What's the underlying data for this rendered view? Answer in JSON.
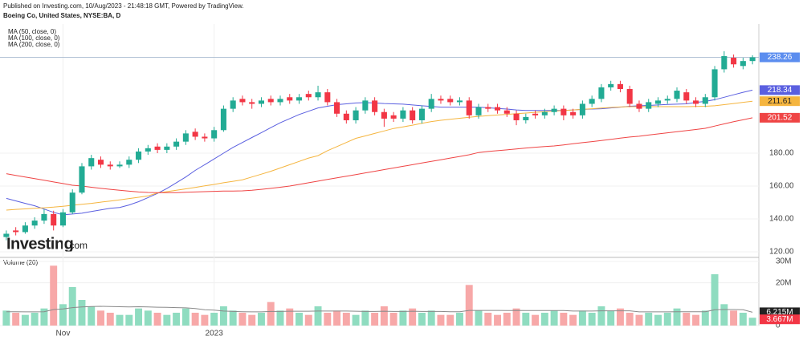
{
  "header": {
    "published": "Published on Investing.com, 10/Aug/2023 - 21:48:18 GMT, Powered by TradingView.",
    "symbol": "Boeing Co, United States, NYSE:BA, D"
  },
  "logo": {
    "name": "Investing",
    "suffix": ".com"
  },
  "chart_data": {
    "type": "candlestick",
    "categories": [
      null,
      null,
      null,
      null,
      null,
      null,
      "Nov",
      null,
      null,
      null,
      null,
      null,
      null,
      null,
      null,
      null,
      null,
      null,
      null,
      null,
      null,
      null,
      "2023",
      null,
      null,
      null,
      null,
      null,
      null,
      null,
      null,
      null,
      null,
      null,
      null,
      null,
      null,
      null,
      null,
      null,
      null,
      null,
      null,
      null,
      null,
      null,
      null,
      null,
      null,
      null,
      null,
      null,
      null,
      null,
      null,
      null,
      null,
      null,
      null,
      null,
      null,
      null,
      null,
      null,
      null,
      null,
      null,
      null,
      null,
      null,
      null,
      null,
      null,
      null,
      null,
      null,
      null,
      null,
      null,
      null
    ],
    "open": [
      129,
      133,
      132,
      136,
      139,
      143,
      136,
      144,
      156,
      172,
      176,
      173,
      172,
      173,
      176,
      181,
      184,
      182,
      184,
      187,
      193,
      190,
      189,
      194,
      207,
      213,
      211,
      210,
      213,
      211,
      214,
      212,
      216,
      214,
      217,
      211,
      204,
      200,
      206,
      212,
      205,
      203,
      201,
      206,
      200,
      207,
      213,
      213,
      211,
      212,
      203,
      208,
      208,
      206,
      204,
      200,
      204,
      203,
      205,
      207,
      205,
      203,
      210,
      213,
      220,
      222,
      219,
      210,
      207,
      210,
      212,
      213,
      217,
      212,
      210,
      214,
      231,
      238,
      233,
      236
    ],
    "high": [
      133,
      135,
      138,
      141,
      146,
      145,
      146,
      158,
      174,
      179,
      178,
      175,
      175,
      178,
      183,
      185,
      186,
      186,
      189,
      194,
      195,
      192,
      196,
      209,
      214,
      215,
      213,
      214,
      215,
      215,
      216,
      216,
      218,
      221,
      219,
      213,
      206,
      208,
      214,
      214,
      207,
      205,
      208,
      208,
      209,
      216,
      215,
      215,
      214,
      214,
      210,
      210,
      210,
      208,
      206,
      204,
      206,
      207,
      209,
      209,
      207,
      212,
      215,
      222,
      224,
      224,
      221,
      212,
      213,
      214,
      215,
      220,
      219,
      214,
      216,
      233,
      242,
      240,
      238,
      239.5
    ],
    "low": [
      127,
      130,
      131,
      134,
      137,
      133,
      135,
      143,
      155,
      170,
      171,
      170,
      171,
      171,
      174,
      179,
      180,
      180,
      182,
      185,
      188,
      187,
      187,
      193,
      205,
      209,
      207,
      208,
      209,
      209,
      210,
      210,
      212,
      212,
      209,
      202,
      198,
      198,
      204,
      203,
      196,
      199,
      199,
      198,
      198,
      205,
      210,
      209,
      209,
      201,
      201,
      205,
      204,
      202,
      197,
      198,
      201,
      201,
      203,
      200,
      201,
      201,
      208,
      211,
      218,
      217,
      208,
      205,
      205,
      208,
      210,
      211,
      210,
      208,
      208,
      212,
      229,
      232,
      231,
      234
    ],
    "close": [
      131,
      132,
      136,
      139,
      143,
      136,
      144,
      156,
      172,
      177,
      173,
      172,
      173,
      176,
      181,
      183,
      182,
      184,
      187,
      192,
      190,
      189,
      194,
      207,
      212,
      211,
      210,
      212,
      211,
      213,
      212,
      214,
      214,
      217,
      211,
      204,
      200,
      206,
      212,
      205,
      201,
      201,
      206,
      200,
      207,
      213,
      212,
      211,
      212,
      203,
      208,
      207,
      206,
      204,
      200,
      202,
      203,
      205,
      207,
      203,
      203,
      210,
      213,
      220,
      222,
      219,
      210,
      207,
      211,
      212,
      213,
      218,
      212,
      210,
      214,
      231,
      239,
      234,
      236,
      238.26
    ],
    "up_color": "#22ab94",
    "down_color": "#f23645",
    "ylim": [
      117.1,
      258.5
    ],
    "yticks": [
      {
        "value": 120,
        "label": "120.00"
      },
      {
        "value": 140,
        "label": "140.00"
      },
      {
        "value": 160,
        "label": "160.00"
      },
      {
        "value": 180,
        "label": "180.00"
      }
    ],
    "last_price_color": "#5b8def",
    "series": [
      {
        "name": "MA (50, close, 0)",
        "color": "#5a5fe0",
        "values": [
          152.5,
          151,
          149.5,
          148,
          146,
          144,
          142.5,
          143,
          143.5,
          144.5,
          145.5,
          146.5,
          147,
          148.5,
          150.5,
          153,
          155.5,
          158.5,
          162,
          165.5,
          169.5,
          173,
          176.5,
          180,
          183.5,
          186.5,
          189.5,
          192.5,
          195.5,
          198.5,
          201,
          203.5,
          205.5,
          207.5,
          208.5,
          209.5,
          210,
          210.5,
          210.7,
          210.5,
          210.2,
          210,
          209.8,
          209.3,
          208.8,
          208.4,
          208,
          208,
          208,
          208,
          208,
          207.6,
          207.2,
          206.8,
          206.3,
          206,
          206,
          206,
          206,
          206,
          206.3,
          206.6,
          206.8,
          207,
          207.5,
          208,
          208.5,
          208.8,
          209,
          209.3,
          209.6,
          209.8,
          210,
          210.8,
          211.5,
          212.5,
          214,
          215.5,
          217,
          218.34
        ]
      },
      {
        "name": "MA (100, close, 0)",
        "color": "#f5b53f",
        "values": [
          145.4,
          145.8,
          146.1,
          146.5,
          146.8,
          147.2,
          147.7,
          148.3,
          148.9,
          149.5,
          150.2,
          150.9,
          151.6,
          152.4,
          153.2,
          154,
          155.8,
          156.6,
          157.4,
          158.3,
          159.2,
          160.1,
          161,
          162,
          162.9,
          163.8,
          165.5,
          167.2,
          169,
          171,
          173,
          175,
          177,
          178.5,
          181.5,
          184,
          186.5,
          189,
          190.5,
          192,
          193.5,
          195,
          196,
          197,
          198.2,
          199.2,
          200,
          200.6,
          201.2,
          201.8,
          202.4,
          202.8,
          203.2,
          203.6,
          204,
          204.4,
          204.8,
          205.2,
          205.6,
          205.9,
          206.3,
          206.6,
          207,
          207.4,
          207.8,
          208.1,
          208.3,
          208.3,
          208.3,
          208.3,
          208.3,
          208.3,
          208.3,
          208.4,
          208.5,
          208.8,
          209.5,
          210.2,
          210.9,
          211.61
        ]
      },
      {
        "name": "MA (200, close, 0)",
        "color": "#ef4444",
        "values": [
          167.5,
          166.5,
          165.5,
          164.5,
          163.5,
          162.5,
          161.5,
          160.5,
          160,
          159.3,
          158.6,
          158,
          157.4,
          156.9,
          156.4,
          156.1,
          156,
          156,
          156,
          156.2,
          156.4,
          156.6,
          156.8,
          157,
          157,
          157.1,
          157.4,
          158,
          158.6,
          159.3,
          160,
          161,
          162,
          163,
          164,
          165,
          166,
          167,
          168,
          169,
          170,
          171,
          172,
          173,
          174,
          175,
          176,
          177,
          178,
          179,
          180.4,
          181,
          181.5,
          182,
          182.6,
          183.1,
          183.6,
          184,
          184.4,
          185,
          185.7,
          186.4,
          187,
          187.7,
          188.4,
          189.1,
          189.8,
          190.3,
          191,
          191.7,
          192.4,
          193,
          193.7,
          194.4,
          195.1,
          196.5,
          197.8,
          199.1,
          200.3,
          201.52
        ]
      }
    ],
    "volume": {
      "title": "Volume (20)",
      "values": [
        7,
        6,
        5,
        6,
        8,
        28,
        10,
        18,
        12,
        9,
        7,
        6,
        5,
        5,
        8,
        7,
        6,
        5,
        6,
        8,
        6,
        5,
        6,
        9,
        7,
        6,
        5,
        6,
        11,
        7,
        8,
        6,
        5,
        9,
        6,
        7,
        6,
        5,
        7,
        6,
        9,
        6,
        7,
        8,
        6,
        7,
        5,
        5,
        6,
        19,
        7,
        6,
        5,
        6,
        8,
        6,
        5,
        6,
        7,
        6,
        5,
        7,
        6,
        9,
        7,
        8,
        6,
        5,
        6,
        5,
        6,
        8,
        6,
        5,
        7,
        24,
        10,
        7,
        6,
        3.667
      ],
      "last_label": "3.667M",
      "up_color": "#8fdcc0",
      "down_color": "#f7a8a8",
      "ylim": [
        0,
        31.5
      ],
      "yticks": [
        {
          "value": 30,
          "label": "30M"
        },
        {
          "value": 20,
          "label": "20M"
        },
        0
      ],
      "ma": {
        "color": "#8a8a8a",
        "values": [
          6.5,
          6.5,
          6.4,
          6.4,
          6.5,
          7.5,
          7.8,
          8.4,
          8.7,
          8.9,
          9,
          8.9,
          8.8,
          8.7,
          8.8,
          8.7,
          8.6,
          8.5,
          8.4,
          8.3,
          8,
          7.4,
          7.2,
          6.8,
          6.6,
          6.5,
          6.4,
          6.4,
          6.6,
          6.6,
          6.7,
          6.7,
          6.7,
          6.8,
          6.8,
          6.8,
          6.8,
          6.7,
          6.6,
          6.6,
          6.7,
          6.6,
          6.6,
          6.7,
          6.6,
          6.6,
          6.6,
          6.5,
          6.5,
          7.1,
          7.1,
          7.1,
          7.1,
          7,
          7.1,
          7,
          7,
          7,
          7,
          7,
          6.8,
          6.8,
          6.8,
          6.9,
          6.9,
          6.9,
          6.9,
          6.4,
          6.4,
          6.4,
          6.4,
          6.5,
          6.5,
          6.5,
          6.5,
          7.4,
          7.5,
          7.5,
          7.4,
          6.215
        ],
        "last_label": "6.215M"
      }
    },
    "grid": true
  }
}
